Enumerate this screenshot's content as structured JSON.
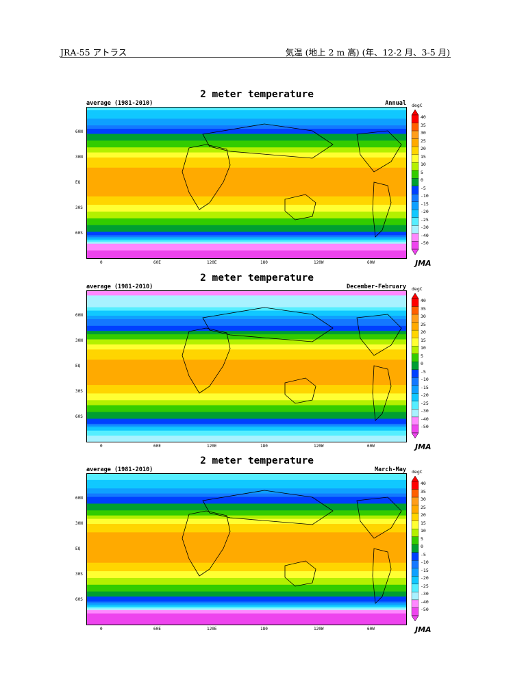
{
  "header": {
    "left": "JRA-55 アトラス",
    "right": "気温 (地上 2 m 高) (年、12-2 月、3-5 月)"
  },
  "chart_data": [
    {
      "type": "heatmap",
      "title": "2 meter temperature",
      "subtitle": "average (1981-2010)",
      "season": "Annual",
      "unit": "degC",
      "logo": "JMA",
      "y_tick_labels": [
        "60N",
        "30N",
        "EQ",
        "30S",
        "60S"
      ],
      "y_ticks_deg": [
        60,
        30,
        0,
        -30,
        -60
      ],
      "x_tick_labels": [
        "0",
        "60E",
        "120E",
        "180",
        "120W",
        "60W"
      ],
      "x_ticks_lon": [
        0,
        60,
        120,
        180,
        240,
        300
      ],
      "lon_range": [
        -20,
        340
      ],
      "lat_range": [
        -90,
        90
      ],
      "colorbar_levels": [
        "40",
        "35",
        "30",
        "25",
        "20",
        "15",
        "10",
        "5",
        "0",
        "-5",
        "-10",
        "-15",
        "-20",
        "-25",
        "-30",
        "-40",
        "-50"
      ],
      "zonal_temps": [
        [
          90,
          -22
        ],
        [
          70,
          -12
        ],
        [
          60,
          -2
        ],
        [
          45,
          8
        ],
        [
          30,
          20
        ],
        [
          15,
          26
        ],
        [
          0,
          26
        ],
        [
          -15,
          25
        ],
        [
          -30,
          18
        ],
        [
          -45,
          8
        ],
        [
          -55,
          2
        ],
        [
          -62,
          -5
        ],
        [
          -68,
          -20
        ],
        [
          -75,
          -35
        ],
        [
          -90,
          -48
        ]
      ]
    },
    {
      "type": "heatmap",
      "title": "2 meter temperature",
      "subtitle": "average (1981-2010)",
      "season": "December-February",
      "unit": "degC",
      "logo": "JMA",
      "y_tick_labels": [
        "60N",
        "30N",
        "EQ",
        "30S",
        "60S"
      ],
      "y_ticks_deg": [
        60,
        30,
        0,
        -30,
        -60
      ],
      "x_tick_labels": [
        "0",
        "60E",
        "120E",
        "180",
        "120W",
        "60W"
      ],
      "x_ticks_lon": [
        0,
        60,
        120,
        180,
        240,
        300
      ],
      "lon_range": [
        -20,
        340
      ],
      "lat_range": [
        -90,
        90
      ],
      "colorbar_levels": [
        "40",
        "35",
        "30",
        "25",
        "20",
        "15",
        "10",
        "5",
        "0",
        "-5",
        "-10",
        "-15",
        "-20",
        "-25",
        "-30",
        "-40",
        "-50"
      ],
      "zonal_temps": [
        [
          90,
          -32
        ],
        [
          70,
          -25
        ],
        [
          60,
          -14
        ],
        [
          45,
          -2
        ],
        [
          30,
          12
        ],
        [
          15,
          24
        ],
        [
          0,
          26
        ],
        [
          -15,
          27
        ],
        [
          -30,
          22
        ],
        [
          -45,
          11
        ],
        [
          -55,
          4
        ],
        [
          -62,
          0
        ],
        [
          -68,
          -4
        ],
        [
          -75,
          -20
        ],
        [
          -90,
          -30
        ]
      ]
    },
    {
      "type": "heatmap",
      "title": "2 meter temperature",
      "subtitle": "average (1981-2010)",
      "season": "March-May",
      "unit": "degC",
      "logo": "JMA",
      "y_tick_labels": [
        "60N",
        "30N",
        "EQ",
        "30S",
        "60S"
      ],
      "y_ticks_deg": [
        60,
        30,
        0,
        -30,
        -60
      ],
      "x_tick_labels": [
        "0",
        "60E",
        "120E",
        "180",
        "120W",
        "60W"
      ],
      "x_ticks_lon": [
        0,
        60,
        120,
        180,
        240,
        300
      ],
      "lon_range": [
        -20,
        340
      ],
      "lat_range": [
        -90,
        90
      ],
      "colorbar_levels": [
        "40",
        "35",
        "30",
        "25",
        "20",
        "15",
        "10",
        "5",
        "0",
        "-5",
        "-10",
        "-15",
        "-20",
        "-25",
        "-30",
        "-40",
        "-50"
      ],
      "zonal_temps": [
        [
          90,
          -24
        ],
        [
          70,
          -14
        ],
        [
          60,
          -4
        ],
        [
          45,
          6
        ],
        [
          30,
          20
        ],
        [
          15,
          28
        ],
        [
          0,
          27
        ],
        [
          -15,
          25
        ],
        [
          -30,
          18
        ],
        [
          -45,
          8
        ],
        [
          -55,
          2
        ],
        [
          -62,
          -6
        ],
        [
          -68,
          -22
        ],
        [
          -75,
          -40
        ],
        [
          -90,
          -52
        ]
      ]
    }
  ],
  "colors": {
    "levels": [
      "#ff0000",
      "#ff6000",
      "#ff9e1a",
      "#ffaa00",
      "#ffd500",
      "#ffff33",
      "#b4f000",
      "#33cc00",
      "#009f32",
      "#0040ff",
      "#1478ff",
      "#0fa0ff",
      "#11c8ff",
      "#55eeff",
      "#a8f2ff",
      "#ff88ff",
      "#ee44ee"
    ]
  }
}
